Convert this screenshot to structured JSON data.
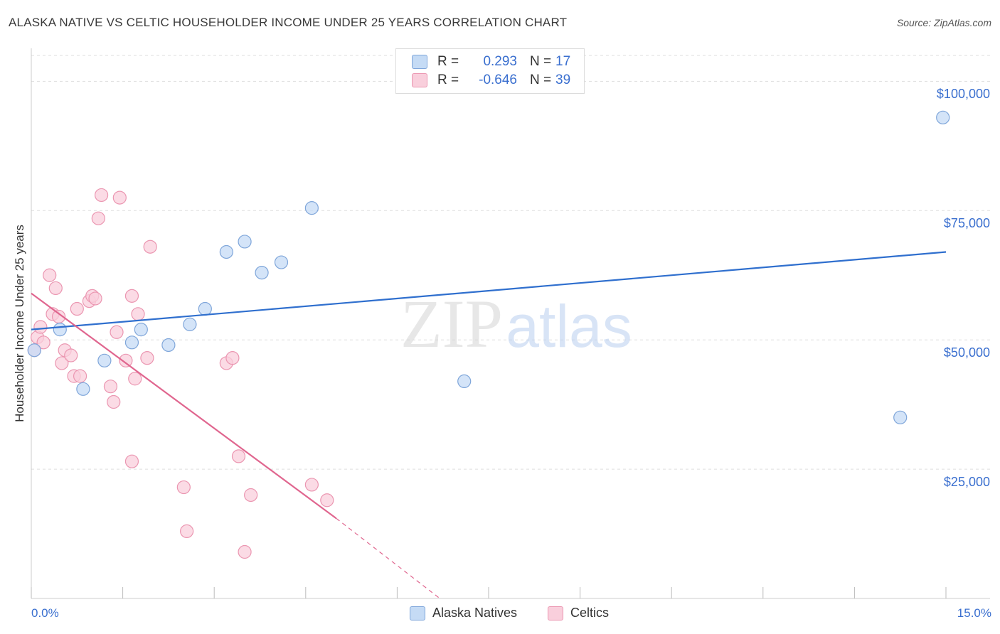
{
  "title": "ALASKA NATIVE VS CELTIC HOUSEHOLDER INCOME UNDER 25 YEARS CORRELATION CHART",
  "source": "Source: ZipAtlas.com",
  "watermark": {
    "zip": "ZIP",
    "atlas": "atlas"
  },
  "legend": {
    "r_label": "R =",
    "n_label": "N =",
    "rows": [
      {
        "name": "Alaska Natives",
        "r": "0.293",
        "n": "17",
        "color": "#a9c8f0"
      },
      {
        "name": "Celtics",
        "r": "-0.646",
        "n": "39",
        "color": "#f5b8cb"
      }
    ]
  },
  "colors": {
    "blue_point_fill": "#c5dbf5",
    "blue_point_stroke": "#7fa6da",
    "blue_line": "#2f6fce",
    "pink_point_fill": "#f9cfdc",
    "pink_point_stroke": "#eb96b1",
    "pink_line": "#e0668f",
    "grid": "#dddddd",
    "axis_text": "#3a6fcf"
  },
  "chart_data": {
    "type": "scatter",
    "title": "ALASKA NATIVE VS CELTIC HOUSEHOLDER INCOME UNDER 25 YEARS CORRELATION CHART",
    "xlabel": "",
    "ylabel": "Householder Income Under 25 years",
    "xlim": [
      0,
      15
    ],
    "ylim": [
      0,
      105000
    ],
    "x_tick_labels": {
      "min": "0.0%",
      "max": "15.0%"
    },
    "y_ticks": [
      25000,
      50000,
      75000,
      100000
    ],
    "y_tick_labels": [
      "$25,000",
      "$50,000",
      "$75,000",
      "$100,000"
    ],
    "grid": true,
    "series": [
      {
        "name": "Alaska Natives",
        "points": [
          [
            0.05,
            48000
          ],
          [
            0.47,
            52000
          ],
          [
            0.85,
            40500
          ],
          [
            1.2,
            46000
          ],
          [
            1.65,
            49500
          ],
          [
            1.8,
            52000
          ],
          [
            2.25,
            49000
          ],
          [
            2.6,
            53000
          ],
          [
            2.85,
            56000
          ],
          [
            3.2,
            67000
          ],
          [
            3.5,
            69000
          ],
          [
            3.78,
            63000
          ],
          [
            4.1,
            65000
          ],
          [
            4.6,
            75500
          ],
          [
            7.1,
            42000
          ],
          [
            14.25,
            35000
          ],
          [
            14.95,
            93000
          ]
        ],
        "trend": {
          "x": [
            0,
            15
          ],
          "y": [
            52000,
            67000
          ]
        }
      },
      {
        "name": "Celtics",
        "points": [
          [
            0.05,
            48000
          ],
          [
            0.1,
            50500
          ],
          [
            0.15,
            52500
          ],
          [
            0.2,
            49500
          ],
          [
            0.3,
            62500
          ],
          [
            0.35,
            55000
          ],
          [
            0.4,
            60000
          ],
          [
            0.45,
            54500
          ],
          [
            0.5,
            45500
          ],
          [
            0.55,
            48000
          ],
          [
            0.65,
            47000
          ],
          [
            0.7,
            43000
          ],
          [
            0.75,
            56000
          ],
          [
            0.8,
            43000
          ],
          [
            0.95,
            57500
          ],
          [
            1.0,
            58500
          ],
          [
            1.05,
            58000
          ],
          [
            1.1,
            73500
          ],
          [
            1.15,
            78000
          ],
          [
            1.3,
            41000
          ],
          [
            1.35,
            38000
          ],
          [
            1.4,
            51500
          ],
          [
            1.45,
            77500
          ],
          [
            1.55,
            46000
          ],
          [
            1.65,
            26500
          ],
          [
            1.65,
            58500
          ],
          [
            1.7,
            42500
          ],
          [
            1.75,
            55000
          ],
          [
            1.9,
            46500
          ],
          [
            1.95,
            68000
          ],
          [
            2.5,
            21500
          ],
          [
            2.55,
            13000
          ],
          [
            3.2,
            45500
          ],
          [
            3.3,
            46500
          ],
          [
            3.4,
            27500
          ],
          [
            3.5,
            9000
          ],
          [
            3.6,
            20000
          ],
          [
            4.6,
            22000
          ],
          [
            4.85,
            19000
          ]
        ],
        "trend": {
          "x": [
            0,
            5
          ],
          "y": [
            59000,
            15500
          ]
        },
        "trend_extension": {
          "x": [
            5,
            6.7
          ],
          "y": [
            15500,
            0
          ]
        }
      }
    ]
  }
}
